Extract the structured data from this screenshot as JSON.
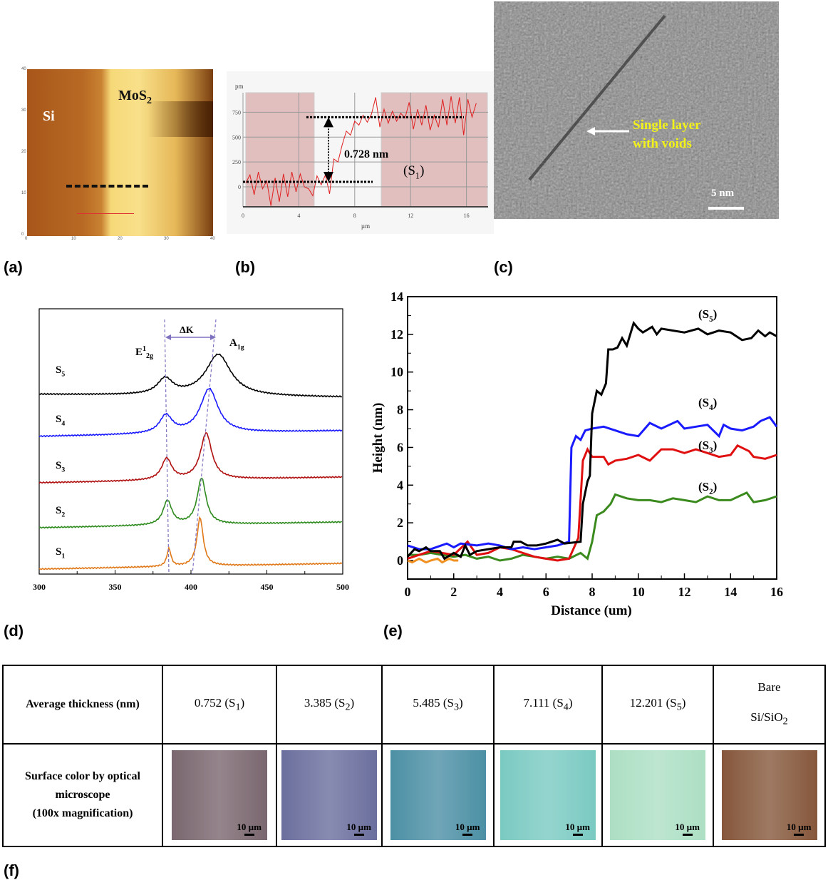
{
  "panel_labels": [
    "(a)",
    "(b)",
    "(c)",
    "(d)",
    "(e)",
    "(f)"
  ],
  "panel_a": {
    "labels": {
      "left": "Si",
      "right": "MoS",
      "right_sub": "2"
    },
    "x_ticks": [
      "0",
      "10",
      "20",
      "30",
      "40"
    ],
    "y_ticks": [
      "0",
      "10",
      "20",
      "30",
      "40"
    ],
    "x_unit": "µm",
    "y_unit": "µm"
  },
  "panel_c": {
    "annotation_line1": "Single layer",
    "annotation_line2": "with voids",
    "scale_bar": "5 nm",
    "annotation_color": "#f2f21a"
  },
  "chart_data": [
    {
      "id": "b",
      "type": "line",
      "ylabel": "pm",
      "xlabel": "µm",
      "x_ticks": [
        0,
        4,
        8,
        12,
        16
      ],
      "y_ticks": [
        0,
        250,
        500,
        750
      ],
      "xlim": [
        0,
        17.5
      ],
      "ylim": [
        -200,
        930
      ],
      "annotation": "0.728 nm",
      "sample_label": "(S",
      "sample_sub": "1",
      "sample_close": ")",
      "highlight_ranges": [
        [
          0.2,
          5.1
        ],
        [
          9.9,
          17.5
        ]
      ],
      "levels": [
        50,
        700
      ],
      "series": [
        {
          "color": "#e02020",
          "points": [
            [
              0.2,
              40
            ],
            [
              0.5,
              120
            ],
            [
              0.8,
              -80
            ],
            [
              1.1,
              150
            ],
            [
              1.4,
              -20
            ],
            [
              1.7,
              60
            ],
            [
              2,
              -190
            ],
            [
              2.3,
              90
            ],
            [
              2.6,
              -150
            ],
            [
              2.9,
              130
            ],
            [
              3.2,
              -100
            ],
            [
              3.5,
              150
            ],
            [
              3.8,
              -50
            ],
            [
              4.1,
              130
            ],
            [
              4.4,
              0
            ],
            [
              4.7,
              -20
            ],
            [
              5,
              -90
            ],
            [
              5.3,
              110
            ],
            [
              5.6,
              20
            ],
            [
              5.9,
              120
            ],
            [
              6.2,
              -70
            ],
            [
              6.5,
              280
            ],
            [
              6.8,
              250
            ],
            [
              7.1,
              420
            ],
            [
              7.4,
              560
            ],
            [
              7.7,
              520
            ],
            [
              8,
              660
            ],
            [
              8.3,
              620
            ],
            [
              8.6,
              720
            ],
            [
              8.9,
              650
            ],
            [
              9.2,
              730
            ],
            [
              9.5,
              900
            ],
            [
              9.8,
              600
            ],
            [
              10.1,
              780
            ],
            [
              10.4,
              640
            ],
            [
              10.7,
              760
            ],
            [
              11,
              660
            ],
            [
              11.3,
              740
            ],
            [
              11.6,
              690
            ],
            [
              11.9,
              850
            ],
            [
              12.2,
              580
            ],
            [
              12.5,
              780
            ],
            [
              12.8,
              620
            ],
            [
              13.1,
              820
            ],
            [
              13.4,
              570
            ],
            [
              13.7,
              720
            ],
            [
              14,
              600
            ],
            [
              14.3,
              880
            ],
            [
              14.6,
              620
            ],
            [
              14.9,
              910
            ],
            [
              15.2,
              640
            ],
            [
              15.5,
              900
            ],
            [
              15.8,
              520
            ],
            [
              16.1,
              880
            ],
            [
              16.4,
              700
            ],
            [
              16.7,
              840
            ]
          ]
        }
      ]
    },
    {
      "id": "d",
      "type": "line",
      "x_ticks": [
        300,
        350,
        400,
        450,
        500
      ],
      "xlim": [
        300,
        500
      ],
      "peak_labels": {
        "e": "E",
        "e_sup": "1",
        "e_sub": "2g",
        "a": "A",
        "a_sub": "1g",
        "delta": "ΔK"
      },
      "series": [
        {
          "name": "S",
          "sub": "5",
          "color": "#000000",
          "E12g": 383,
          "A1g": 418
        },
        {
          "name": "S",
          "sub": "4",
          "color": "#1a1aff",
          "E12g": 383.5,
          "A1g": 412
        },
        {
          "name": "S",
          "sub": "3",
          "color": "#b01010",
          "E12g": 384,
          "A1g": 410
        },
        {
          "name": "S",
          "sub": "2",
          "color": "#2e8b1e",
          "E12g": 384.5,
          "A1g": 407
        },
        {
          "name": "S",
          "sub": "1",
          "color": "#e07818",
          "E12g": 385.5,
          "A1g": 406
        }
      ]
    },
    {
      "id": "e",
      "type": "line",
      "xlabel": "Distance (um)",
      "ylabel": "Height (nm)",
      "x_ticks": [
        0,
        2,
        4,
        6,
        8,
        10,
        12,
        14,
        16
      ],
      "y_ticks": [
        0,
        2,
        4,
        6,
        8,
        10,
        12,
        14
      ],
      "xlim": [
        0,
        16
      ],
      "ylim": [
        -1,
        14
      ],
      "series": [
        {
          "name": "(S",
          "sub": "5",
          "color": "#000000",
          "points": [
            [
              0,
              0.2
            ],
            [
              0.3,
              0.6
            ],
            [
              0.5,
              0.5
            ],
            [
              0.8,
              0.7
            ],
            [
              1,
              0.5
            ],
            [
              1.4,
              0.5
            ],
            [
              1.6,
              0.1
            ],
            [
              2,
              0.4
            ],
            [
              2.3,
              0.2
            ],
            [
              2.5,
              0.8
            ],
            [
              2.7,
              0.3
            ],
            [
              3,
              0.5
            ],
            [
              3.5,
              0.6
            ],
            [
              4,
              0.7
            ],
            [
              4.5,
              0.7
            ],
            [
              4.6,
              1
            ],
            [
              4.9,
              1
            ],
            [
              5.2,
              0.8
            ],
            [
              5.6,
              0.8
            ],
            [
              6,
              0.9
            ],
            [
              6.5,
              1.1
            ],
            [
              6.8,
              0.9
            ],
            [
              7.5,
              1.0
            ],
            [
              7.6,
              3
            ],
            [
              7.8,
              4.2
            ],
            [
              7.9,
              4.5
            ],
            [
              8,
              7.8
            ],
            [
              8.2,
              9
            ],
            [
              8.4,
              8.8
            ],
            [
              8.6,
              9.4
            ],
            [
              8.7,
              11.2
            ],
            [
              8.9,
              11.2
            ],
            [
              9.1,
              11.3
            ],
            [
              9.3,
              11.8
            ],
            [
              9.5,
              11.4
            ],
            [
              9.8,
              12.6
            ],
            [
              10,
              12.3
            ],
            [
              10.2,
              12.1
            ],
            [
              10.6,
              12.4
            ],
            [
              10.8,
              12.0
            ],
            [
              11,
              12.3
            ],
            [
              12,
              12.1
            ],
            [
              12.6,
              12.3
            ],
            [
              13,
              12.0
            ],
            [
              13.5,
              12.2
            ],
            [
              14,
              12.1
            ],
            [
              14.5,
              11.7
            ],
            [
              14.9,
              11.8
            ],
            [
              15.2,
              12.2
            ],
            [
              15.5,
              11.9
            ],
            [
              15.7,
              12.1
            ],
            [
              16,
              11.9
            ]
          ]
        },
        {
          "name": "(S",
          "sub": "4",
          "color": "#1a1aff",
          "points": [
            [
              0,
              0.8
            ],
            [
              0.5,
              0.6
            ],
            [
              1,
              0.6
            ],
            [
              1.7,
              0.9
            ],
            [
              2,
              0.7
            ],
            [
              2.3,
              0.9
            ],
            [
              3,
              0.8
            ],
            [
              3.5,
              0.9
            ],
            [
              4,
              0.8
            ],
            [
              4.5,
              0.6
            ],
            [
              5,
              0.7
            ],
            [
              5.5,
              0.6
            ],
            [
              6,
              0.7
            ],
            [
              6.5,
              0.8
            ],
            [
              7,
              1.0
            ],
            [
              7.1,
              6
            ],
            [
              7.3,
              6.6
            ],
            [
              7.5,
              6.4
            ],
            [
              7.7,
              6.9
            ],
            [
              8,
              7.0
            ],
            [
              8.5,
              7.1
            ],
            [
              9,
              6.9
            ],
            [
              9.5,
              6.7
            ],
            [
              10,
              6.6
            ],
            [
              10.5,
              7.3
            ],
            [
              11,
              7.0
            ],
            [
              11.7,
              7.4
            ],
            [
              12,
              7.0
            ],
            [
              12.5,
              7.1
            ],
            [
              13,
              7.2
            ],
            [
              13.5,
              6.6
            ],
            [
              13.7,
              7.2
            ],
            [
              14,
              7.0
            ],
            [
              14.5,
              6.9
            ],
            [
              15,
              7.1
            ],
            [
              15.3,
              7.4
            ],
            [
              15.7,
              7.6
            ],
            [
              16,
              7.1
            ]
          ]
        },
        {
          "name": "(S",
          "sub": "3",
          "color": "#e01010",
          "points": [
            [
              0,
              0.1
            ],
            [
              0.5,
              0.3
            ],
            [
              1,
              0.5
            ],
            [
              1.5,
              0.4
            ],
            [
              2,
              0.3
            ],
            [
              2.6,
              1.0
            ],
            [
              3,
              0.3
            ],
            [
              3.5,
              0.4
            ],
            [
              4,
              0.7
            ],
            [
              4.5,
              0.6
            ],
            [
              5,
              0.4
            ],
            [
              5.5,
              0.2
            ],
            [
              6,
              0.1
            ],
            [
              6.5,
              0.0
            ],
            [
              7,
              0.1
            ],
            [
              7.4,
              1.2
            ],
            [
              7.6,
              5.3
            ],
            [
              7.8,
              5.9
            ],
            [
              8,
              5.5
            ],
            [
              8.5,
              5.5
            ],
            [
              8.7,
              5.1
            ],
            [
              9,
              5.3
            ],
            [
              9.5,
              5.4
            ],
            [
              10,
              5.6
            ],
            [
              10.5,
              5.3
            ],
            [
              11,
              5.9
            ],
            [
              11.5,
              5.9
            ],
            [
              12,
              5.7
            ],
            [
              12.5,
              5.9
            ],
            [
              13,
              5.7
            ],
            [
              13.5,
              5.5
            ],
            [
              14,
              5.6
            ],
            [
              14.3,
              6.1
            ],
            [
              14.8,
              5.8
            ],
            [
              15,
              5.5
            ],
            [
              15.5,
              5.4
            ],
            [
              16,
              5.6
            ]
          ]
        },
        {
          "name": "(S",
          "sub": "2",
          "color": "#3a8a1e",
          "points": [
            [
              0,
              0.3
            ],
            [
              0.5,
              0.3
            ],
            [
              1,
              0.4
            ],
            [
              1.5,
              0.3
            ],
            [
              2,
              0.2
            ],
            [
              2.5,
              0.3
            ],
            [
              3,
              0.1
            ],
            [
              3.5,
              0.2
            ],
            [
              4,
              0.0
            ],
            [
              4.5,
              0.1
            ],
            [
              5,
              0.3
            ],
            [
              5.5,
              0.2
            ],
            [
              6,
              0.1
            ],
            [
              6.5,
              0.2
            ],
            [
              7,
              0.1
            ],
            [
              7.5,
              0.4
            ],
            [
              7.8,
              0.1
            ],
            [
              8,
              1
            ],
            [
              8.2,
              2.4
            ],
            [
              8.5,
              2.6
            ],
            [
              8.8,
              3.0
            ],
            [
              9,
              3.5
            ],
            [
              9.5,
              3.3
            ],
            [
              10,
              3.2
            ],
            [
              10.5,
              3.2
            ],
            [
              11,
              3.1
            ],
            [
              11.5,
              3.3
            ],
            [
              12,
              3.2
            ],
            [
              12.5,
              3.1
            ],
            [
              13,
              3.4
            ],
            [
              13.5,
              3.2
            ],
            [
              14,
              3.2
            ],
            [
              14.7,
              3.6
            ],
            [
              15,
              3.1
            ],
            [
              15.5,
              3.2
            ],
            [
              16,
              3.4
            ]
          ]
        },
        {
          "color": "#f09020",
          "points": [
            [
              0,
              0
            ],
            [
              0.2,
              -0.1
            ],
            [
              0.5,
              0.1
            ],
            [
              0.8,
              -0.1
            ],
            [
              1,
              0.0
            ],
            [
              1.3,
              0.1
            ],
            [
              1.5,
              -0.1
            ],
            [
              1.8,
              0.1
            ],
            [
              2,
              0.0
            ],
            [
              2.2,
              0.0
            ]
          ]
        }
      ]
    }
  ],
  "table": {
    "row1_header": "Average thickness (nm)",
    "thickness": [
      {
        "value": "0.752 (S",
        "sub": "1",
        "close": ")"
      },
      {
        "value": "3.385 (S",
        "sub": "2",
        "close": ")"
      },
      {
        "value": "5.485 (S",
        "sub": "3",
        "close": ")"
      },
      {
        "value": "7.111 (S",
        "sub": "4",
        "close": ")"
      },
      {
        "value": "12.201 (S",
        "sub": "5",
        "close": ")"
      }
    ],
    "bare_line1": "Bare",
    "bare_line2": "Si/SiO",
    "bare_sub": "2",
    "row2_header_line1": "Surface color by optical",
    "row2_header_line2": "microscope",
    "row2_header_line3": "(100x magnification)",
    "scale_bar": "10 µm",
    "swatch_colors": [
      "#7e6a72",
      "#6e72a2",
      "#4e94aa",
      "#7ed0c8",
      "#b2e6ca",
      "#8a5a3e"
    ]
  }
}
